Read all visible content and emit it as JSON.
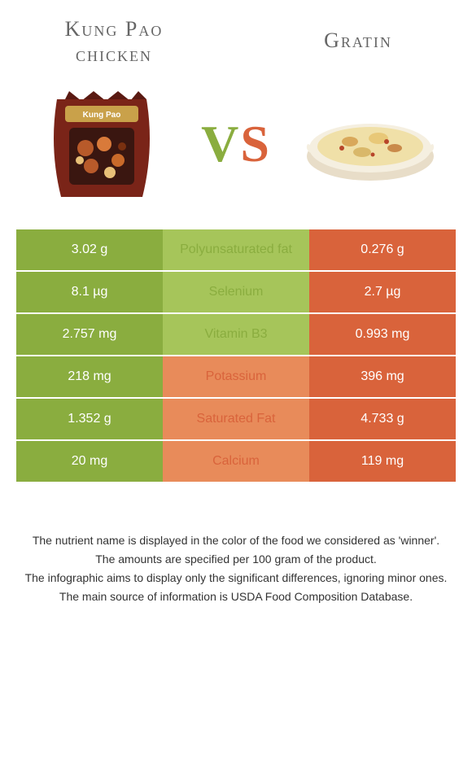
{
  "titles": {
    "left_line1": "Kung Pao",
    "left_line2": "chicken",
    "right": "Gratin"
  },
  "vs": {
    "v": "V",
    "s": "S"
  },
  "colors": {
    "green": "#8aad3f",
    "green_mid": "#a6c55a",
    "orange": "#d9633b",
    "orange_mid": "#e88b5a",
    "text_on_color": "#ffffff"
  },
  "rows": [
    {
      "left": "3.02 g",
      "label": "Polyunsaturated fat",
      "right": "0.276 g",
      "winner": "left"
    },
    {
      "left": "8.1 µg",
      "label": "Selenium",
      "right": "2.7 µg",
      "winner": "left"
    },
    {
      "left": "2.757 mg",
      "label": "Vitamin B3",
      "right": "0.993 mg",
      "winner": "left"
    },
    {
      "left": "218 mg",
      "label": "Potassium",
      "right": "396 mg",
      "winner": "right"
    },
    {
      "left": "1.352 g",
      "label": "Saturated Fat",
      "right": "4.733 g",
      "winner": "right"
    },
    {
      "left": "20 mg",
      "label": "Calcium",
      "right": "119 mg",
      "winner": "right"
    }
  ],
  "footer": [
    "The nutrient name is displayed in the color of the food we considered as 'winner'.",
    "The amounts are specified per 100 gram of the product.",
    "The infographic aims to display only the significant differences, ignoring minor ones.",
    "The main source of information is USDA Food Composition Database."
  ]
}
